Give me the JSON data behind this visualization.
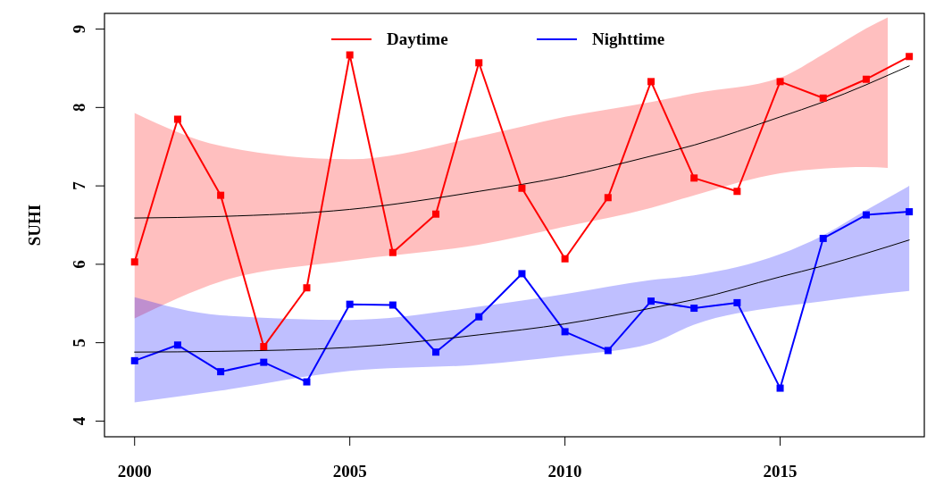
{
  "chart_data": {
    "type": "line",
    "ylabel": "SUHI",
    "xlim": [
      1999.3,
      2018.35
    ],
    "ylim": [
      3.8,
      9.2
    ],
    "xticks": [
      2000,
      2005,
      2010,
      2015
    ],
    "yticks": [
      4,
      5,
      6,
      7,
      8,
      9
    ],
    "grid": false,
    "legend": "top",
    "marker": "square",
    "line_style": "solid",
    "x": [
      2000,
      2001,
      2002,
      2003,
      2004,
      2005,
      2006,
      2007,
      2008,
      2009,
      2010,
      2011,
      2012,
      2013,
      2014,
      2015,
      2016,
      2017,
      2018
    ],
    "series": [
      {
        "name": "Daytime",
        "color": "#ff0000",
        "values": [
          6.03,
          7.85,
          6.88,
          4.95,
          5.7,
          8.67,
          6.15,
          6.64,
          8.57,
          6.97,
          6.07,
          6.85,
          8.33,
          7.1,
          6.93,
          8.33,
          8.12,
          8.36,
          8.65
        ]
      },
      {
        "type": "line",
        "color": "#000000",
        "marker": "none",
        "x": [
          2000,
          2002,
          2005,
          2008,
          2010,
          2012,
          2013,
          2015,
          2016,
          2017,
          2017.5,
          2018
        ],
        "values": [
          6.59,
          6.61,
          6.7,
          6.93,
          7.12,
          7.38,
          7.52,
          7.88,
          8.07,
          8.29,
          8.41,
          8.53
        ],
        "lower": [
          5.31,
          5.78,
          6.05,
          6.25,
          6.48,
          6.72,
          6.88,
          7.16,
          7.22,
          7.24,
          7.23,
          null
        ],
        "upper": [
          7.93,
          7.51,
          7.34,
          7.63,
          7.88,
          8.07,
          8.18,
          8.38,
          8.68,
          9.01,
          9.15,
          null
        ]
      },
      {
        "name": "Nighttime",
        "color": "#0000ff",
        "values": [
          4.77,
          4.97,
          4.63,
          4.75,
          4.5,
          5.49,
          5.48,
          4.88,
          5.33,
          5.88,
          5.14,
          4.9,
          5.53,
          5.44,
          5.51,
          4.42,
          6.33,
          6.63,
          6.67
        ]
      },
      {
        "type": "line",
        "color": "#000000",
        "marker": "none",
        "x": [
          2000,
          2002,
          2005,
          2008,
          2010,
          2012,
          2013,
          2015,
          2016,
          2017,
          2018
        ],
        "values": [
          4.88,
          4.89,
          4.94,
          5.1,
          5.24,
          5.44,
          5.55,
          5.84,
          5.98,
          6.14,
          6.31
        ],
        "lower": [
          4.24,
          4.39,
          4.64,
          4.72,
          4.83,
          4.99,
          5.23,
          5.46,
          5.53,
          5.6,
          5.66
        ],
        "upper": [
          5.58,
          5.35,
          5.29,
          5.46,
          5.62,
          5.8,
          5.86,
          6.13,
          6.37,
          6.69,
          7.0
        ]
      }
    ]
  }
}
